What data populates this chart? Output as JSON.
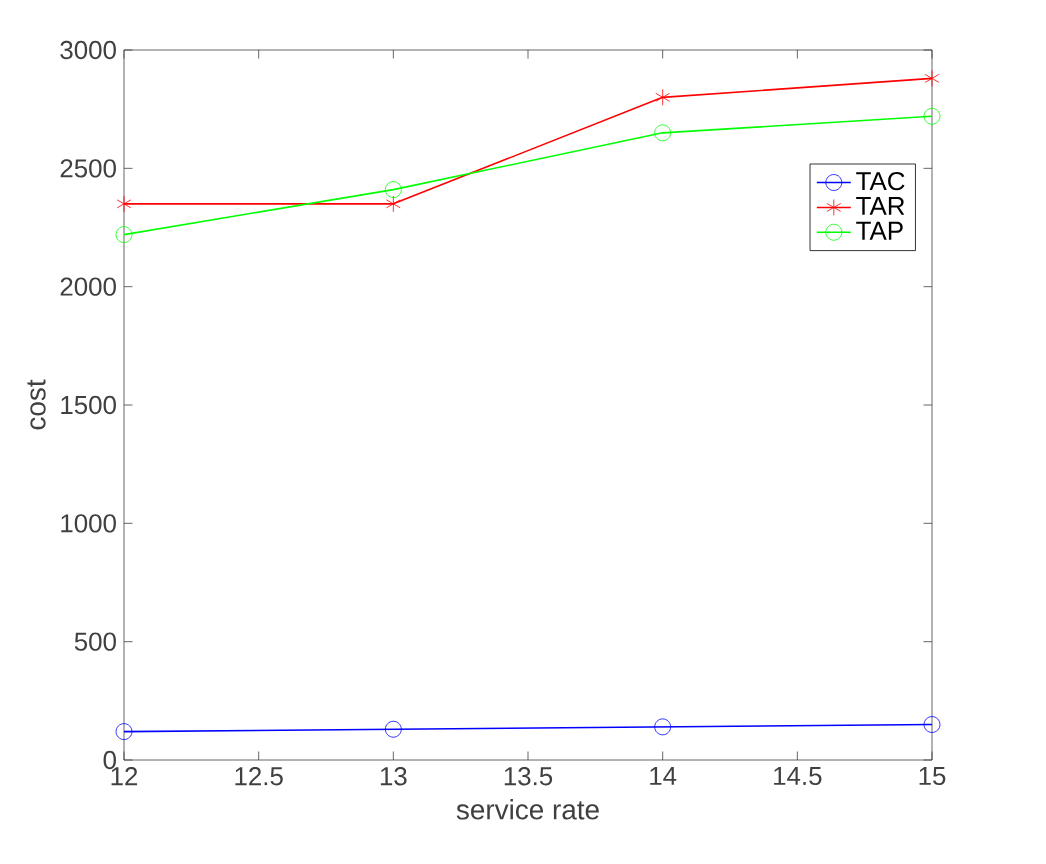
{
  "chart_data": {
    "type": "line",
    "xlabel": "service rate",
    "ylabel": "cost",
    "x": [
      12,
      13,
      14,
      15
    ],
    "xlim": [
      12,
      15
    ],
    "ylim": [
      0,
      3000
    ],
    "xticks": [
      12,
      12.5,
      13,
      13.5,
      14,
      14.5,
      15
    ],
    "yticks": [
      0,
      500,
      1000,
      1500,
      2000,
      2500,
      3000
    ],
    "legend": "top right",
    "grid": false,
    "line_style": "solid",
    "series": [
      {
        "name": "TAC",
        "color": "#0000ff",
        "marker": "circle",
        "values": [
          120,
          130,
          140,
          150
        ]
      },
      {
        "name": "TAR",
        "color": "#ff0000",
        "marker": "cross",
        "values": [
          2350,
          2350,
          2800,
          2880
        ]
      },
      {
        "name": "TAP",
        "color": "#00ff00",
        "marker": "circle",
        "values": [
          2220,
          2410,
          2650,
          2720
        ]
      }
    ]
  }
}
